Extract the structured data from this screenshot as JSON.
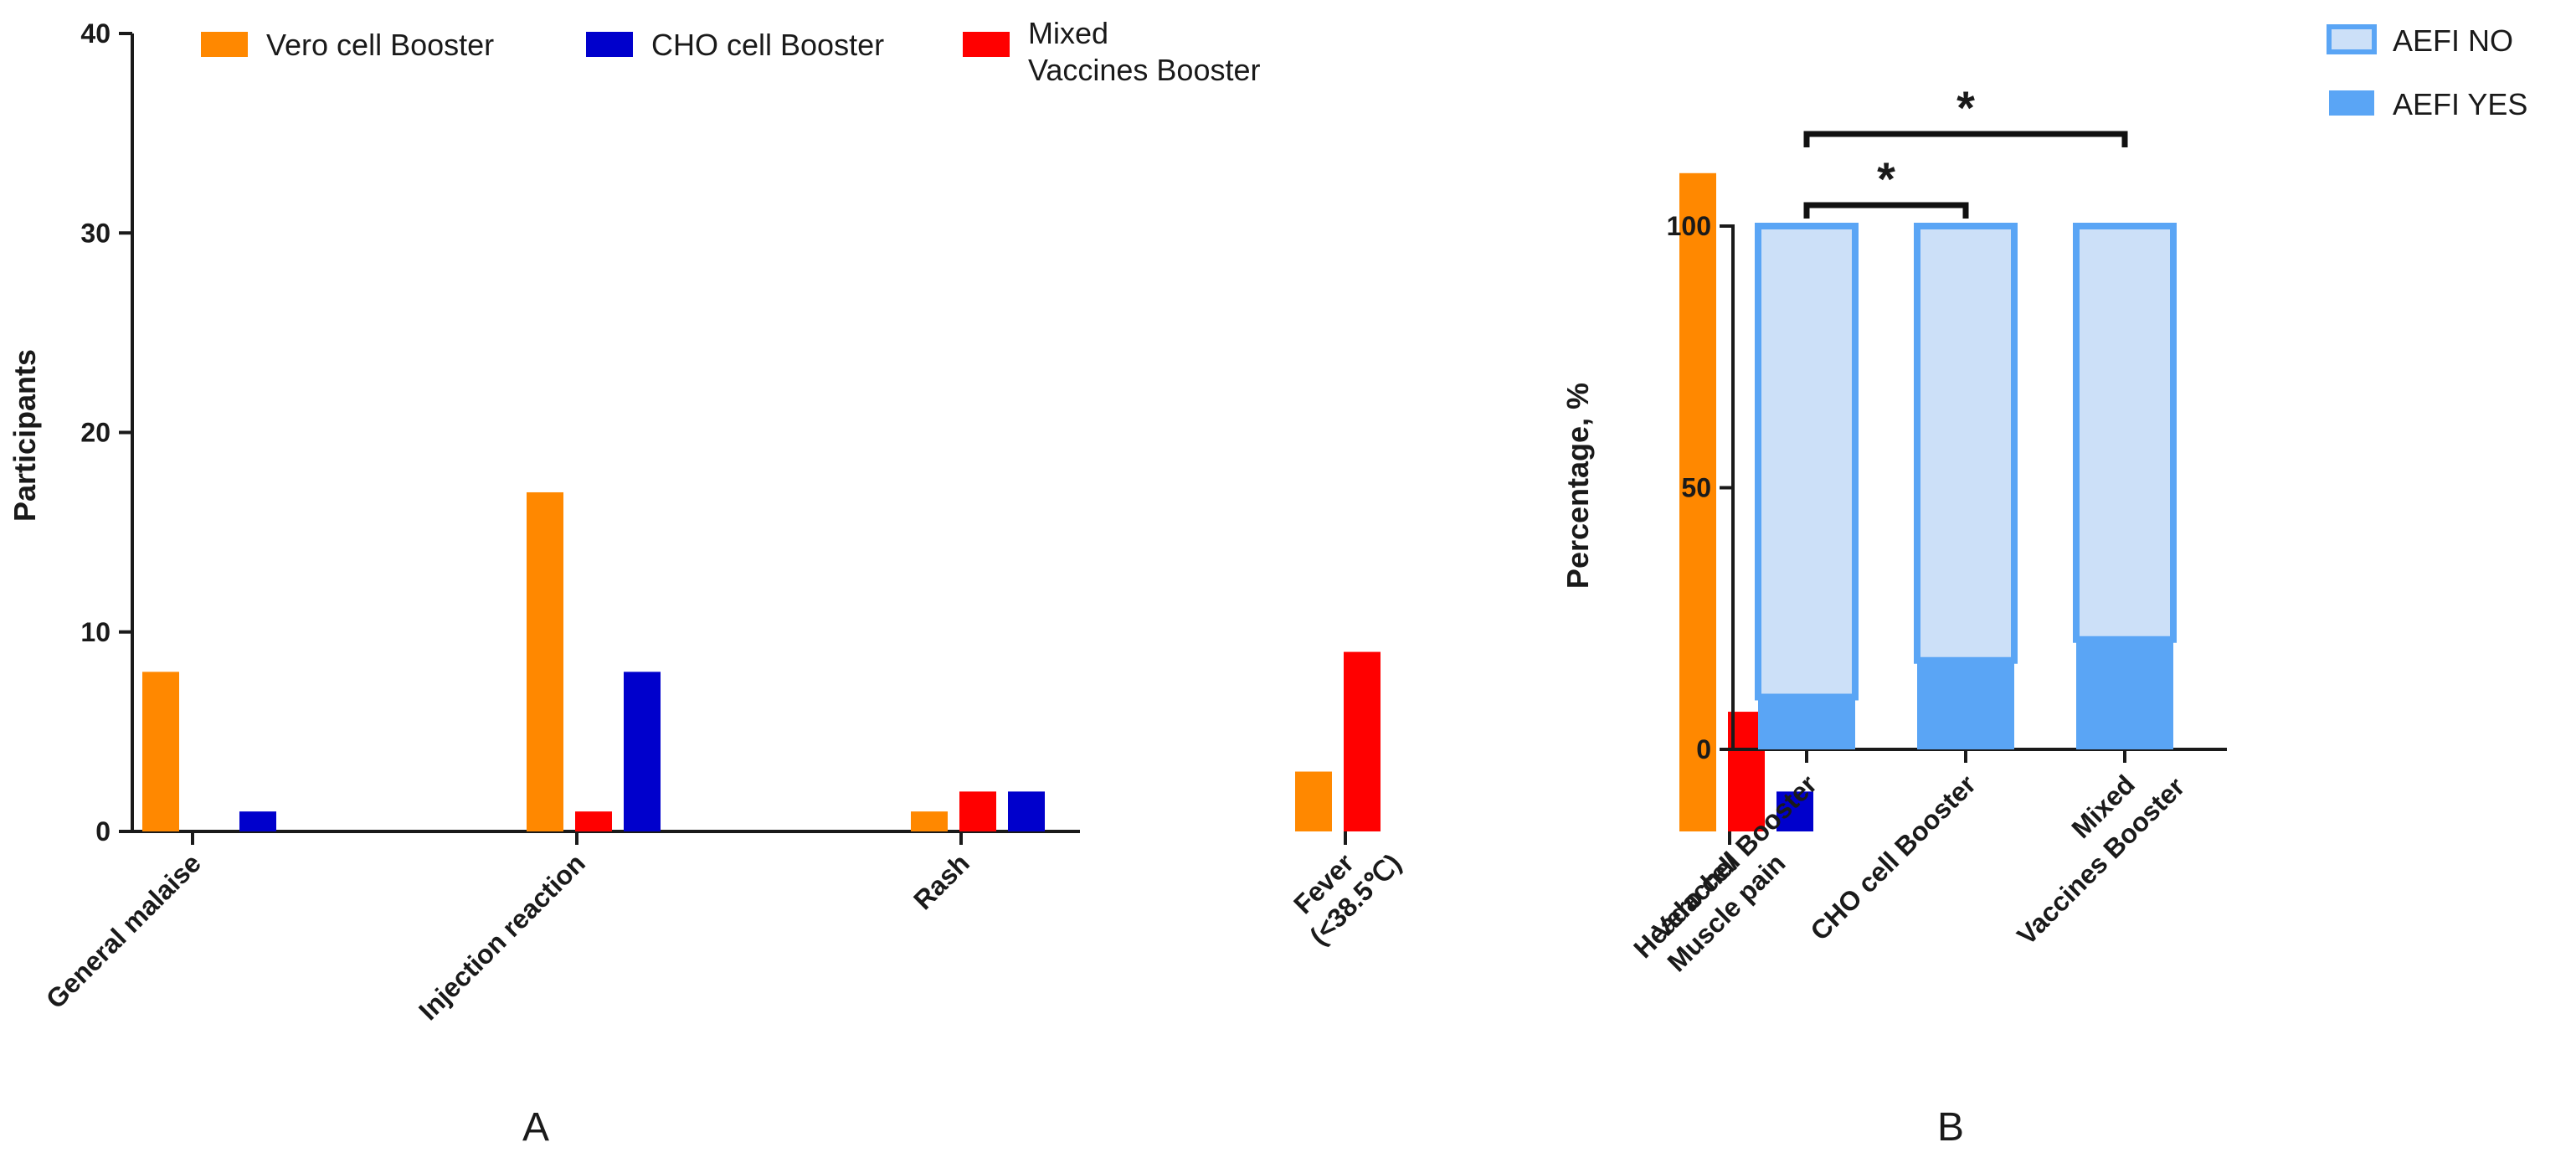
{
  "chart_data": [
    {
      "type": "bar",
      "panel_label": "A",
      "categories": [
        "General malaise",
        "Injection reaction",
        "Rash",
        "Fever (<38.5℃)",
        "Headache/ Muscle pain"
      ],
      "category_lines": [
        [
          "General malaise"
        ],
        [
          "Injection reaction"
        ],
        [
          "Rash"
        ],
        [
          "Fever",
          "(<38.5℃)"
        ],
        [
          "Headache/",
          "Muscle pain"
        ]
      ],
      "series": [
        {
          "name": "Vero cell Booster",
          "legend_lines": [
            "Vero cell Booster"
          ],
          "color": "#ff8800",
          "values": [
            8,
            17,
            1,
            3,
            33
          ]
        },
        {
          "name": "Mixed Vaccines Booster",
          "legend_lines": [
            "Mixed",
            "Vaccines Booster"
          ],
          "color": "#ff0000",
          "values": [
            0,
            1,
            2,
            9,
            6
          ]
        },
        {
          "name": "CHO cell Booster",
          "legend_lines": [
            "CHO cell Booster"
          ],
          "color": "#0000cc",
          "values": [
            1,
            8,
            2,
            0,
            2
          ]
        }
      ],
      "legend_order": [
        0,
        2,
        1
      ],
      "xlabel": "",
      "ylabel": "Participants",
      "ylim": [
        0,
        40
      ],
      "yticks": [
        0,
        10,
        20,
        30,
        40
      ],
      "grid": false
    },
    {
      "type": "bar",
      "stacked": true,
      "panel_label": "B",
      "categories": [
        "Vero cell Booster",
        "CHO cell Booster",
        "Mixed Vaccines Booster"
      ],
      "category_lines": [
        [
          "Vero cell Booster"
        ],
        [
          "CHO cell Booster"
        ],
        [
          "Mixed",
          "Vaccines Booster"
        ]
      ],
      "series": [
        {
          "name": "AEFI YES",
          "color": "#5aa5f5",
          "values": [
            10,
            17,
            21
          ]
        },
        {
          "name": "AEFI NO",
          "color": "#cce0f8",
          "values": [
            90,
            83,
            79
          ]
        }
      ],
      "legend_order": [
        1,
        0
      ],
      "xlabel": "",
      "ylabel": "Percentage, %",
      "ylim": [
        0,
        100
      ],
      "yticks": [
        0,
        50,
        100
      ],
      "grid": false,
      "significance": [
        {
          "from": 0,
          "to": 1,
          "label": "*"
        },
        {
          "from": 0,
          "to": 2,
          "label": "*"
        }
      ]
    }
  ]
}
